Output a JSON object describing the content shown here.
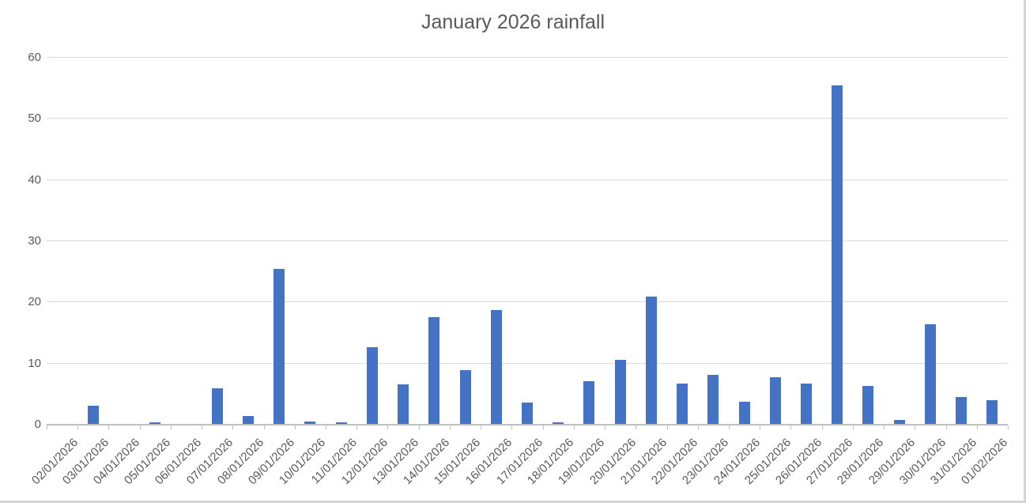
{
  "chart_data": {
    "type": "bar",
    "title": "January 2026 rainfall",
    "categories": [
      "02/01/2026",
      "03/01/2026",
      "04/01/2026",
      "05/01/2026",
      "06/01/2026",
      "07/01/2026",
      "08/01/2026",
      "09/01/2026",
      "10/01/2026",
      "11/01/2026",
      "12/01/2026",
      "13/01/2026",
      "14/01/2026",
      "15/01/2026",
      "16/01/2026",
      "17/01/2026",
      "18/01/2026",
      "19/01/2026",
      "20/01/2026",
      "21/01/2026",
      "22/01/2026",
      "23/01/2026",
      "24/01/2026",
      "25/01/2026",
      "26/01/2026",
      "27/01/2026",
      "28/01/2026",
      "29/01/2026",
      "30/01/2026",
      "31/01/2026",
      "01/02/2026"
    ],
    "values": [
      0,
      3.0,
      0,
      0.3,
      0,
      5.8,
      1.3,
      25.3,
      0.4,
      0.2,
      12.5,
      6.5,
      17.4,
      8.8,
      18.6,
      3.5,
      0.3,
      7.0,
      10.5,
      20.8,
      6.6,
      8.0,
      3.6,
      7.6,
      6.6,
      55.4,
      6.2,
      0.6,
      16.3,
      4.4,
      3.9
    ],
    "xlabel": "",
    "ylabel": "",
    "ylim": [
      0,
      60
    ],
    "yticks": [
      0,
      10,
      20,
      30,
      40,
      50,
      60
    ],
    "grid": true,
    "legend": "none",
    "bar_color": "#4472C4",
    "gridline_color": "#d9d9d9",
    "axis_color": "#bfbfbf",
    "text_color": "#595959",
    "background_color": "#ffffff"
  }
}
